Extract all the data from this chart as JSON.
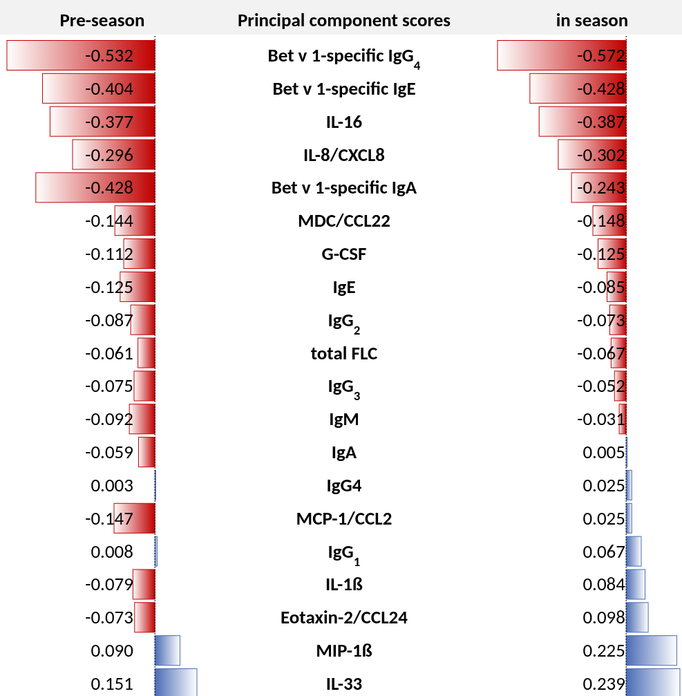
{
  "chart_data": [
    {
      "type": "bar",
      "orientation": "horizontal",
      "title": "Pre-season",
      "ylabel": "Principal component scores",
      "value_labels": [
        "-0.532",
        "-0.404",
        "-0.377",
        "-0.296",
        "-0.428",
        "-0.144",
        "-0.112",
        "-0.125",
        "-0.087",
        "-0.061",
        "-0.075",
        "-0.092",
        "-0.059",
        "0.003",
        "-0.147",
        "0.008",
        "-0.079",
        "-0.073",
        "0.090",
        "0.151"
      ],
      "ref_lines": [
        {
          "axis": "x",
          "value": 0,
          "color": "#000000",
          "line_style": "dotted"
        }
      ],
      "categories": [
        "Bet v 1-specific IgG$_{4}$",
        "Bet v 1-specific IgE",
        "IL-16",
        "IL-8/CXCL8",
        "Bet v 1-specific IgA",
        "MDC/CCL22",
        "G-CSF",
        "IgE",
        "IgG$_{2}$",
        "total FLC",
        "IgG$_{3}$",
        "IgM",
        "IgA",
        "IgG4",
        "MCP-1/CCL2",
        "IgG$_{1}$",
        "IL-1ß",
        "Eotaxin-2/CCL24",
        "MIP-1ß",
        "IL-33"
      ],
      "values": [
        -0.532,
        -0.404,
        -0.377,
        -0.296,
        -0.428,
        -0.144,
        -0.112,
        -0.125,
        -0.087,
        -0.061,
        -0.075,
        -0.092,
        -0.059,
        0.003,
        -0.147,
        0.008,
        -0.079,
        -0.073,
        0.09,
        0.151
      ],
      "colors": [
        "#c00000",
        "#c00000",
        "#c00000",
        "#c00000",
        "#c00000",
        "#c00000",
        "#c00000",
        "#c00000",
        "#c00000",
        "#c00000",
        "#c00000",
        "#c00000",
        "#c00000",
        "#4a6cb5",
        "#c00000",
        "#4a6cb5",
        "#c00000",
        "#c00000",
        "#4a6cb5",
        "#4a6cb5"
      ]
    },
    {
      "type": "bar",
      "orientation": "horizontal",
      "title": "in season",
      "value_labels": [
        "-0.572",
        "-0.428",
        "-0.387",
        "-0.302",
        "-0.243",
        "-0.148",
        "-0.125",
        "-0.085",
        "-0.073",
        "-0.067",
        "-0.052",
        "-0.031",
        "0.005",
        "0.025",
        "0.025",
        "0.067",
        "0.084",
        "0.098",
        "0.225",
        "0.239"
      ],
      "ref_lines": [
        {
          "axis": "x",
          "value": 0,
          "color": "#000000",
          "line_style": "dotted"
        }
      ],
      "categories": [
        null,
        null,
        null,
        null,
        null,
        null,
        null,
        null,
        null,
        null,
        null,
        null,
        null,
        null,
        null,
        null,
        null,
        null,
        null,
        null
      ],
      "values": [
        -0.572,
        -0.428,
        -0.387,
        -0.302,
        -0.243,
        -0.148,
        -0.125,
        -0.085,
        -0.073,
        -0.067,
        -0.052,
        -0.031,
        0.005,
        0.025,
        0.025,
        0.067,
        0.084,
        0.098,
        0.225,
        0.239
      ],
      "colors": [
        "#c00000",
        "#c00000",
        "#c00000",
        "#c00000",
        "#c00000",
        "#c00000",
        "#c00000",
        "#c00000",
        "#c00000",
        "#c00000",
        "#c00000",
        "#c00000",
        "#4a6cb5",
        "#4a6cb5",
        "#4a6cb5",
        "#4a6cb5",
        "#4a6cb5",
        "#4a6cb5",
        "#4a6cb5",
        "#4a6cb5"
      ]
    }
  ]
}
